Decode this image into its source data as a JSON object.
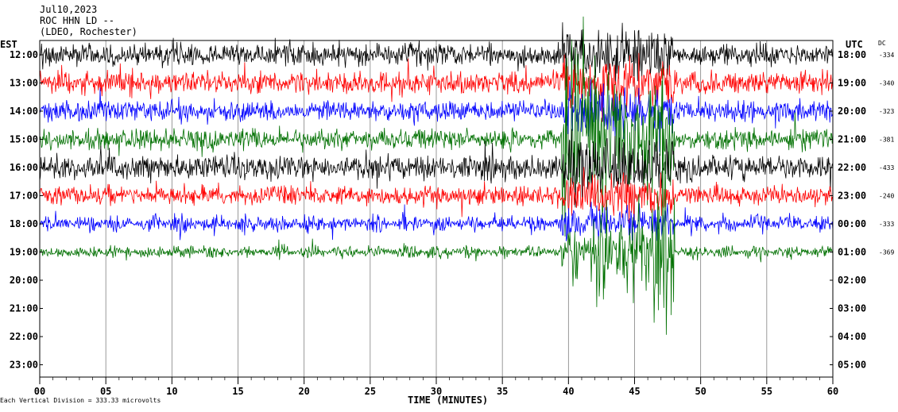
{
  "header": {
    "date": "Jul10,2023",
    "station": "ROC HHN LD --",
    "network": "(LDEO, Rochester)"
  },
  "left_axis_label": "EST",
  "right_axis_label": "UTC",
  "dc_label": "DC",
  "footer_note": "Each Vertical Division = 333.33 microvolts",
  "chart_data": {
    "type": "line",
    "title": "Jul10,2023 ROC HHN LD -- (LDEO, Rochester)",
    "xlabel": "TIME (MINUTES)",
    "xlim": [
      0,
      60
    ],
    "x_ticks": [
      "00",
      "05",
      "10",
      "15",
      "20",
      "25",
      "30",
      "35",
      "40",
      "45",
      "50",
      "55",
      "60"
    ],
    "est_hours": [
      "12:00",
      "13:00",
      "14:00",
      "15:00",
      "16:00",
      "17:00",
      "18:00",
      "19:00",
      "20:00",
      "21:00",
      "22:00",
      "23:00"
    ],
    "utc_hours": [
      "18:00",
      "19:00",
      "20:00",
      "21:00",
      "22:00",
      "23:00",
      "00:00",
      "01:00",
      "02:00",
      "03:00",
      "04:00",
      "05:00"
    ],
    "dc_offsets": [
      "-334",
      "-340",
      "-323",
      "-381",
      "-433",
      "-240",
      "-333",
      "-369"
    ],
    "trace_colors": [
      "#000000",
      "#ff0000",
      "#0000ff",
      "#007000"
    ],
    "traces_recorded": 8,
    "event_window_minutes": [
      39.5,
      48
    ]
  }
}
